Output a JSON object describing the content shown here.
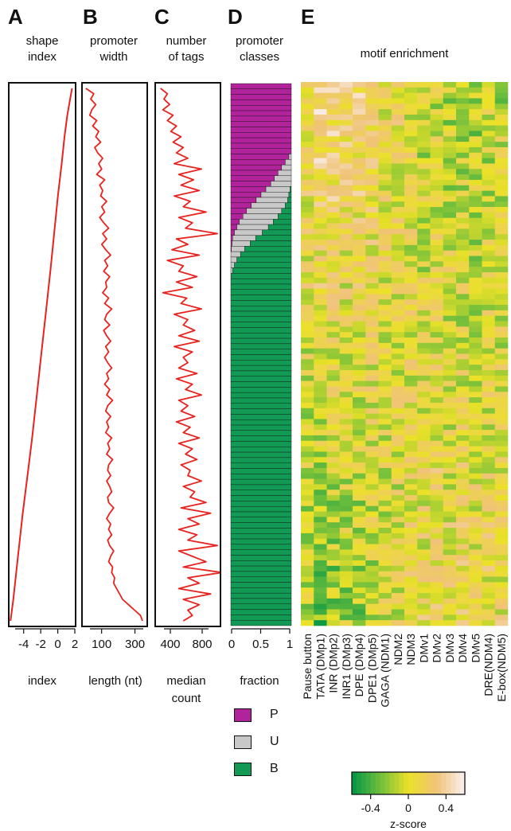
{
  "panels": {
    "a": {
      "letter": "A",
      "title": [
        "shape",
        "index"
      ],
      "xlabel": "index",
      "ticks": [
        "-4",
        "-2",
        "0",
        "2"
      ]
    },
    "b": {
      "letter": "B",
      "title": [
        "promoter",
        "width"
      ],
      "xlabel": "length (nt)",
      "ticks": [
        "100",
        "300"
      ]
    },
    "c": {
      "letter": "C",
      "title": [
        "number",
        "of tags"
      ],
      "xlabel": [
        "median",
        "count"
      ],
      "ticks": [
        "400",
        "800"
      ]
    },
    "d": {
      "letter": "D",
      "title": [
        "promoter",
        "classes"
      ],
      "xlabel": "fraction",
      "ticks": [
        "0",
        "0.5",
        "1"
      ]
    },
    "e": {
      "letter": "E",
      "title": "motif enrichment"
    }
  },
  "legend_classes": [
    {
      "label": "P",
      "color": "#b0239a"
    },
    {
      "label": "U",
      "color": "#c8c8c8"
    },
    {
      "label": "B",
      "color": "#129a55"
    }
  ],
  "colorbar": {
    "title": "z-score",
    "ticks": [
      "-0.4",
      "0",
      "0.4"
    ]
  },
  "chart_data": [
    {
      "type": "line",
      "panel": "A",
      "xlabel": "index",
      "xlim": [
        -5,
        2
      ],
      "note": "shape index vs promoter rank (rank 0 = top, 100 = bottom)",
      "x": [
        1.7,
        1.5,
        1.2,
        0.9,
        0.6,
        0.2,
        -0.2,
        -0.6,
        -1.1,
        -1.6,
        -2.1,
        -2.6,
        -3.1,
        -3.6,
        -4.1,
        -4.6,
        -4.9
      ],
      "y": [
        0,
        2,
        5,
        9,
        14,
        20,
        27,
        34,
        42,
        50,
        58,
        66,
        73,
        80,
        88,
        96,
        100
      ]
    },
    {
      "type": "line",
      "panel": "B",
      "xlabel": "length (nt)",
      "xlim": [
        30,
        350
      ],
      "note": "promoter width (nt) per rank bin, rank 0..100",
      "values": [
        45,
        85,
        70,
        95,
        75,
        65,
        100,
        80,
        110,
        95,
        120,
        90,
        105,
        130,
        110,
        125,
        100,
        140,
        115,
        130,
        120,
        150,
        125,
        140,
        115,
        135,
        160,
        130,
        150,
        125,
        145,
        170,
        140,
        155,
        135,
        165,
        145,
        150,
        130,
        160,
        140,
        175,
        150,
        140,
        165,
        135,
        150,
        170,
        145,
        160,
        140,
        155,
        175,
        150,
        160,
        140,
        165,
        150,
        180,
        155,
        145,
        170,
        150,
        160,
        145,
        175,
        155,
        165,
        150,
        180,
        160,
        155,
        170,
        150,
        165,
        175,
        155,
        160,
        185,
        165,
        150,
        170,
        160,
        175,
        155,
        165,
        185,
        170,
        160,
        180,
        175,
        190,
        185,
        200,
        215,
        230,
        260,
        290,
        320,
        330
      ]
    },
    {
      "type": "line",
      "panel": "C",
      "xlabel": "median count",
      "xlim": [
        320,
        880
      ],
      "note": "median tag count per rank bin, rank 0..100",
      "values": [
        360,
        420,
        390,
        440,
        380,
        470,
        420,
        500,
        450,
        540,
        470,
        560,
        500,
        600,
        480,
        720,
        520,
        650,
        540,
        700,
        480,
        620,
        560,
        760,
        520,
        640,
        580,
        860,
        500,
        600,
        460,
        700,
        420,
        560,
        520,
        680,
        500,
        640,
        380,
        590,
        540,
        720,
        480,
        600,
        560,
        660,
        520,
        700,
        480,
        640,
        560,
        600,
        520,
        680,
        500,
        640,
        580,
        720,
        520,
        600,
        540,
        660,
        500,
        620,
        560,
        700,
        520,
        640,
        580,
        680,
        540,
        620,
        600,
        720,
        560,
        660,
        620,
        760,
        540,
        800,
        600,
        700,
        520,
        680,
        600,
        860,
        520,
        640,
        760,
        560,
        900,
        600,
        700,
        520,
        800,
        560,
        700,
        600,
        640,
        560
      ]
    },
    {
      "type": "area",
      "panel": "D",
      "xlabel": "fraction",
      "xlim": [
        0,
        1
      ],
      "series": [
        {
          "name": "P",
          "values": [
            1,
            1,
            1,
            1,
            1,
            1,
            1,
            1,
            1,
            1,
            1,
            1,
            1,
            0.96,
            0.9,
            0.84,
            0.78,
            0.72,
            0.66,
            0.58,
            0.5,
            0.42,
            0.34,
            0.26,
            0.2,
            0.14,
            0.1,
            0.06,
            0.03,
            0.02,
            0.01,
            0,
            0,
            0,
            0,
            0,
            0,
            0,
            0,
            0,
            0,
            0,
            0,
            0,
            0,
            0,
            0,
            0,
            0,
            0,
            0,
            0,
            0,
            0,
            0,
            0,
            0,
            0,
            0,
            0,
            0,
            0,
            0,
            0,
            0,
            0,
            0,
            0,
            0,
            0,
            0,
            0,
            0,
            0,
            0,
            0,
            0,
            0,
            0,
            0,
            0,
            0,
            0,
            0,
            0,
            0,
            0,
            0,
            0,
            0,
            0,
            0,
            0,
            0,
            0,
            0,
            0,
            0,
            0,
            0
          ]
        },
        {
          "name": "U",
          "values": [
            0,
            0,
            0,
            0,
            0,
            0,
            0,
            0,
            0,
            0,
            0,
            0,
            0,
            0.04,
            0.1,
            0.16,
            0.22,
            0.28,
            0.34,
            0.4,
            0.46,
            0.52,
            0.56,
            0.58,
            0.58,
            0.56,
            0.52,
            0.46,
            0.38,
            0.3,
            0.22,
            0.16,
            0.1,
            0.06,
            0.03,
            0.01,
            0,
            0,
            0,
            0,
            0,
            0,
            0,
            0,
            0,
            0,
            0,
            0,
            0,
            0,
            0,
            0,
            0,
            0,
            0,
            0,
            0,
            0,
            0,
            0,
            0,
            0,
            0,
            0,
            0,
            0,
            0,
            0,
            0,
            0,
            0,
            0,
            0,
            0,
            0,
            0,
            0,
            0,
            0,
            0,
            0,
            0,
            0,
            0,
            0,
            0,
            0,
            0,
            0,
            0,
            0,
            0,
            0,
            0,
            0,
            0,
            0,
            0,
            0,
            0
          ]
        }
      ]
    },
    {
      "type": "heatmap",
      "panel": "E",
      "title": "motif enrichment",
      "columns": [
        "Pause button",
        "TATA (DMp1)",
        "INR (DMp2)",
        "INR1 (DMp3)",
        "DPE (DMp4)",
        "DPE1 (DMp5)",
        "GAGA (NDM1)",
        "NDM2",
        "NDM3",
        "DMv1",
        "DMv2",
        "DMv3",
        "DMv4",
        "DMv5",
        "DRE(NDM4)",
        "E-box(NDM5)"
      ],
      "rows": 100,
      "zlim": [
        -0.6,
        0.6
      ],
      "column_means_top_quarter": [
        0.15,
        0.35,
        0.3,
        0.2,
        0.25,
        0.2,
        0.1,
        0.05,
        0.0,
        -0.1,
        -0.05,
        -0.1,
        -0.15,
        -0.15,
        -0.1,
        -0.1
      ],
      "column_means_bottom_quarter": [
        -0.15,
        -0.3,
        -0.25,
        -0.15,
        -0.2,
        -0.1,
        -0.05,
        0.0,
        0.05,
        0.1,
        0.15,
        0.1,
        0.15,
        0.1,
        0.1,
        0.1
      ]
    }
  ]
}
